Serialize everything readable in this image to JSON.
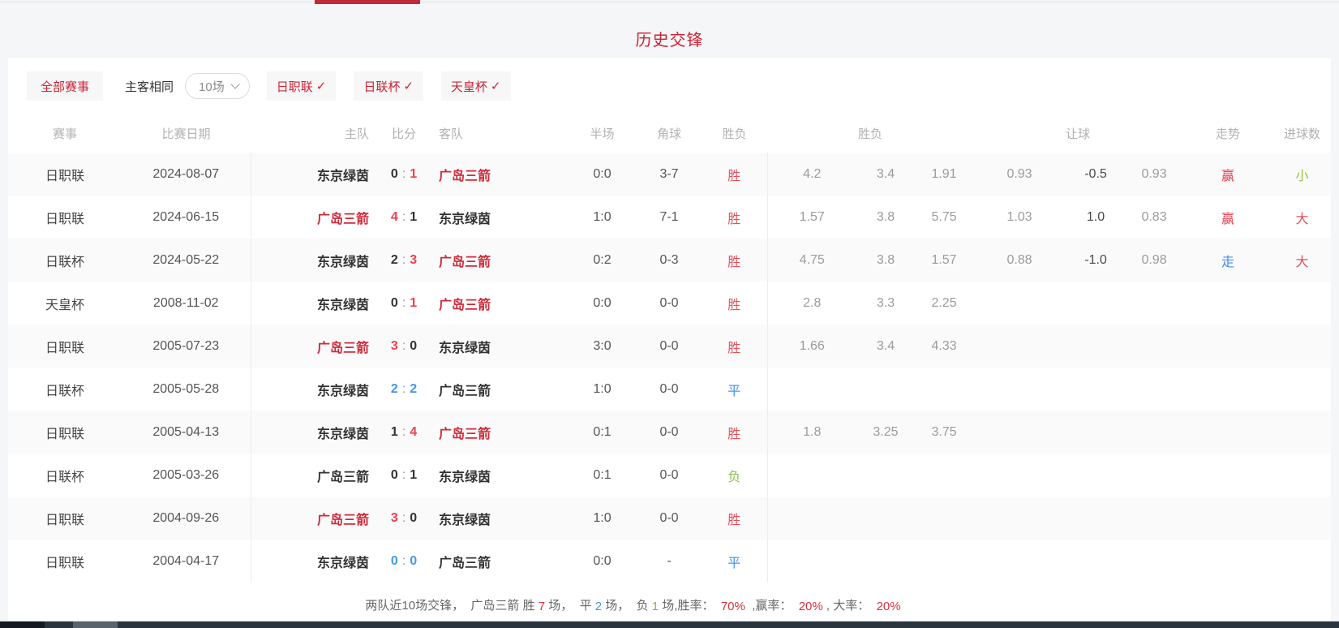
{
  "page": {
    "title": "历史交锋"
  },
  "colors": {
    "accent_red": "#cb2436",
    "score_red": "#ef4050",
    "blue": "#4596e8",
    "green": "#8cc152",
    "odds_gray": "#9b9b9b"
  },
  "filters": {
    "all_label": "全部赛事",
    "same_venue_label": "主客相同",
    "count_select": {
      "value": "10场"
    },
    "check_glyph": "✓",
    "leagues": [
      {
        "label": "日职联",
        "checked": true
      },
      {
        "label": "日联杯",
        "checked": true
      },
      {
        "label": "天皇杯",
        "checked": true
      }
    ]
  },
  "table": {
    "headers": [
      "赛事",
      "比赛日期",
      "主队",
      "比分",
      "客队",
      "半场",
      "角球",
      "胜负",
      "胜负",
      "让球",
      "走势",
      "进球数"
    ],
    "rows": [
      {
        "league": "日职联",
        "date": "2024-08-07",
        "home": {
          "name": "东京绿茵",
          "cls": "dark"
        },
        "score": {
          "home": "0",
          "home_cls": "dark",
          "away": "1",
          "away_cls": "red"
        },
        "away": {
          "name": "广岛三箭",
          "cls": "red"
        },
        "half": "0:0",
        "corner": "3-7",
        "result": {
          "text": "胜",
          "cls": "red"
        },
        "odds": [
          "4.2",
          "3.4",
          "1.91"
        ],
        "handicap": [
          "0.93",
          "-0.5",
          "0.93"
        ],
        "trend": {
          "text": "赢",
          "cls": "red"
        },
        "goals": {
          "text": "小",
          "cls": "green"
        }
      },
      {
        "league": "日职联",
        "date": "2024-06-15",
        "home": {
          "name": "广岛三箭",
          "cls": "red"
        },
        "score": {
          "home": "4",
          "home_cls": "red",
          "away": "1",
          "away_cls": "dark"
        },
        "away": {
          "name": "东京绿茵",
          "cls": "dark"
        },
        "half": "1:0",
        "corner": "7-1",
        "result": {
          "text": "胜",
          "cls": "red"
        },
        "odds": [
          "1.57",
          "3.8",
          "5.75"
        ],
        "handicap": [
          "1.03",
          "1.0",
          "0.83"
        ],
        "trend": {
          "text": "赢",
          "cls": "red"
        },
        "goals": {
          "text": "大",
          "cls": "red"
        }
      },
      {
        "league": "日联杯",
        "date": "2024-05-22",
        "home": {
          "name": "东京绿茵",
          "cls": "dark"
        },
        "score": {
          "home": "2",
          "home_cls": "dark",
          "away": "3",
          "away_cls": "red"
        },
        "away": {
          "name": "广岛三箭",
          "cls": "red"
        },
        "half": "0:2",
        "corner": "0-3",
        "result": {
          "text": "胜",
          "cls": "red"
        },
        "odds": [
          "4.75",
          "3.8",
          "1.57"
        ],
        "handicap": [
          "0.88",
          "-1.0",
          "0.98"
        ],
        "trend": {
          "text": "走",
          "cls": "blue"
        },
        "goals": {
          "text": "大",
          "cls": "red"
        }
      },
      {
        "league": "天皇杯",
        "date": "2008-11-02",
        "home": {
          "name": "东京绿茵",
          "cls": "dark"
        },
        "score": {
          "home": "0",
          "home_cls": "dark",
          "away": "1",
          "away_cls": "red"
        },
        "away": {
          "name": "广岛三箭",
          "cls": "red"
        },
        "half": "0:0",
        "corner": "0-0",
        "result": {
          "text": "胜",
          "cls": "red"
        },
        "odds": [
          "2.8",
          "3.3",
          "2.25"
        ],
        "handicap": [],
        "trend": null,
        "goals": null
      },
      {
        "league": "日职联",
        "date": "2005-07-23",
        "home": {
          "name": "广岛三箭",
          "cls": "red"
        },
        "score": {
          "home": "3",
          "home_cls": "red",
          "away": "0",
          "away_cls": "dark"
        },
        "away": {
          "name": "东京绿茵",
          "cls": "dark"
        },
        "half": "3:0",
        "corner": "0-0",
        "result": {
          "text": "胜",
          "cls": "red"
        },
        "odds": [
          "1.66",
          "3.4",
          "4.33"
        ],
        "handicap": [],
        "trend": null,
        "goals": null
      },
      {
        "league": "日联杯",
        "date": "2005-05-28",
        "home": {
          "name": "东京绿茵",
          "cls": "dark"
        },
        "score": {
          "home": "2",
          "home_cls": "blue",
          "away": "2",
          "away_cls": "blue"
        },
        "away": {
          "name": "广岛三箭",
          "cls": "dark"
        },
        "half": "1:0",
        "corner": "0-0",
        "result": {
          "text": "平",
          "cls": "blue"
        },
        "odds": [],
        "handicap": [],
        "trend": null,
        "goals": null
      },
      {
        "league": "日职联",
        "date": "2005-04-13",
        "home": {
          "name": "东京绿茵",
          "cls": "dark"
        },
        "score": {
          "home": "1",
          "home_cls": "dark",
          "away": "4",
          "away_cls": "red"
        },
        "away": {
          "name": "广岛三箭",
          "cls": "red"
        },
        "half": "0:1",
        "corner": "0-0",
        "result": {
          "text": "胜",
          "cls": "red"
        },
        "odds": [
          "1.8",
          "3.25",
          "3.75"
        ],
        "handicap": [],
        "trend": null,
        "goals": null
      },
      {
        "league": "日联杯",
        "date": "2005-03-26",
        "home": {
          "name": "广岛三箭",
          "cls": "dark"
        },
        "score": {
          "home": "0",
          "home_cls": "dark",
          "away": "1",
          "away_cls": "dark"
        },
        "away": {
          "name": "东京绿茵",
          "cls": "dark"
        },
        "half": "0:1",
        "corner": "0-0",
        "result": {
          "text": "负",
          "cls": "green"
        },
        "odds": [],
        "handicap": [],
        "trend": null,
        "goals": null
      },
      {
        "league": "日职联",
        "date": "2004-09-26",
        "home": {
          "name": "广岛三箭",
          "cls": "red"
        },
        "score": {
          "home": "3",
          "home_cls": "red",
          "away": "0",
          "away_cls": "dark"
        },
        "away": {
          "name": "东京绿茵",
          "cls": "dark"
        },
        "half": "1:0",
        "corner": "0-0",
        "result": {
          "text": "胜",
          "cls": "red"
        },
        "odds": [],
        "handicap": [],
        "trend": null,
        "goals": null
      },
      {
        "league": "日职联",
        "date": "2004-04-17",
        "home": {
          "name": "东京绿茵",
          "cls": "dark"
        },
        "score": {
          "home": "0",
          "home_cls": "blue",
          "away": "0",
          "away_cls": "blue"
        },
        "away": {
          "name": "广岛三箭",
          "cls": "dark"
        },
        "half": "0:0",
        "corner": "-",
        "result": {
          "text": "平",
          "cls": "blue"
        },
        "odds": [],
        "handicap": [],
        "trend": null,
        "goals": null
      }
    ]
  },
  "summary": {
    "parts": [
      {
        "t": "两队近10场交锋，  广岛三箭 胜 "
      },
      {
        "t": "7",
        "c": "red"
      },
      {
        "t": " 场，  平 "
      },
      {
        "t": "2",
        "c": "blue"
      },
      {
        "t": " 场，  负 "
      },
      {
        "t": "1",
        "c": "green"
      },
      {
        "t": " 场,胜率：  "
      },
      {
        "t": "70%",
        "c": "red"
      },
      {
        "t": "  ,赢率：  "
      },
      {
        "t": "20%",
        "c": "red"
      },
      {
        "t": " , 大率：  "
      },
      {
        "t": "20%",
        "c": "red"
      }
    ]
  }
}
